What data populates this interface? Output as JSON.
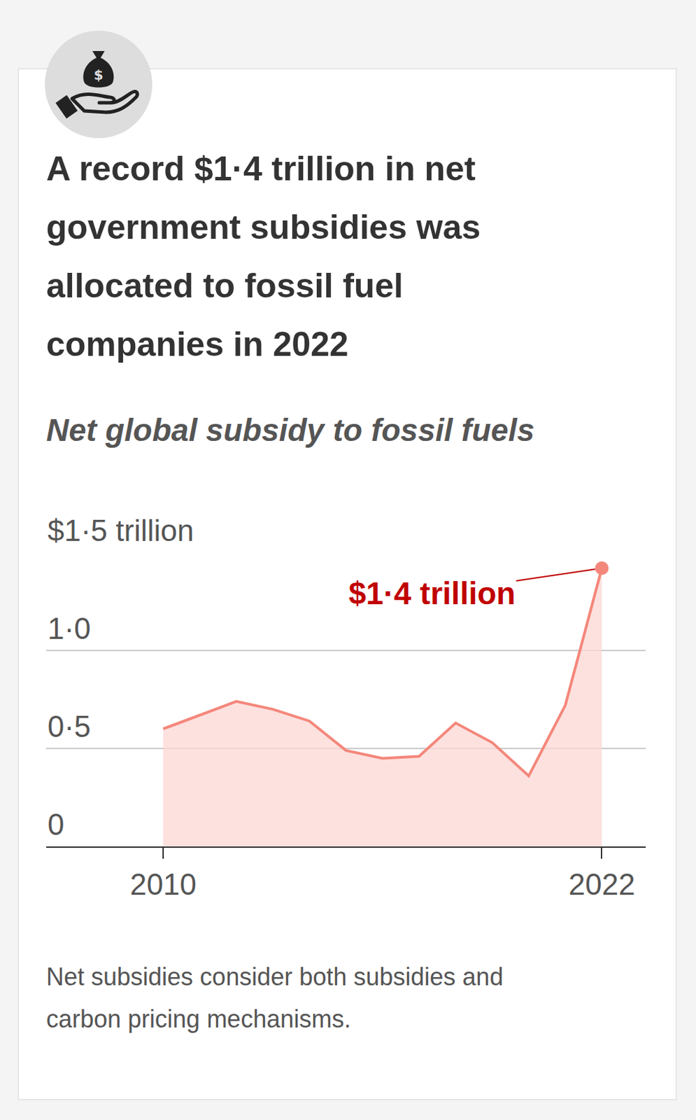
{
  "chart_data": {
    "type": "area",
    "title": "A record $1·4 trillion in net government subsidies was allocated to fossil fuel companies in 2022",
    "subtitle": "Net global subsidy to fossil fuels",
    "note": "Net subsidies consider both subsidies and carbon pricing mechanisms.",
    "annotation": "$1·4 trillion",
    "x": [
      2010,
      2011,
      2012,
      2013,
      2014,
      2015,
      2016,
      2017,
      2018,
      2019,
      2020,
      2021,
      2022
    ],
    "values": [
      0.6,
      0.67,
      0.74,
      0.7,
      0.64,
      0.49,
      0.45,
      0.46,
      0.63,
      0.53,
      0.36,
      0.72,
      1.42
    ],
    "color": "#f4877b",
    "xlim": [
      2006.8,
      2023.2
    ],
    "xticks": [
      2010,
      2022
    ],
    "ylim": [
      0,
      1.5
    ],
    "yticks": [
      0,
      {
        "value": 0.5,
        "label": "0·5"
      },
      {
        "value": 1,
        "label": "1·0"
      },
      {
        "value": 1.5,
        "label": "$1·5 trillion"
      }
    ],
    "grid": true
  }
}
